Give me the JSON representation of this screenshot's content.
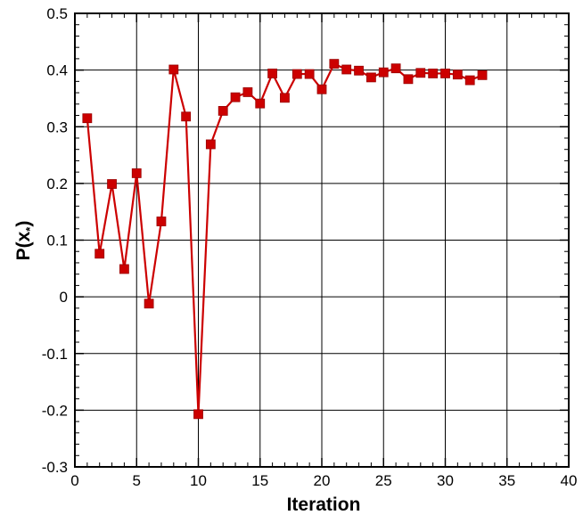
{
  "chart_data": {
    "type": "line",
    "xlabel": "Iteration",
    "ylabel_main": "P(x",
    "ylabel_sub": "*",
    "ylabel_close": ")",
    "xlim": [
      0,
      40
    ],
    "ylim": [
      -0.3,
      0.5
    ],
    "x_major_ticks": [
      "0",
      "5",
      "10",
      "15",
      "20",
      "25",
      "30",
      "35",
      "40"
    ],
    "y_major_ticks": [
      "-0.3",
      "-0.2",
      "-0.1",
      "0",
      "0.1",
      "0.2",
      "0.3",
      "0.4",
      "0.5"
    ],
    "grid": true,
    "series_color": "#cc0000",
    "marker": "square",
    "x": [
      1,
      2,
      3,
      4,
      5,
      6,
      7,
      8,
      9,
      10,
      11,
      12,
      13,
      14,
      15,
      16,
      17,
      18,
      19,
      20,
      21,
      22,
      23,
      24,
      25,
      26,
      27,
      28,
      29,
      30,
      31,
      32,
      33
    ],
    "y": [
      0.315,
      0.076,
      0.199,
      0.049,
      0.218,
      -0.012,
      0.133,
      0.401,
      0.318,
      -0.207,
      0.269,
      0.328,
      0.352,
      0.361,
      0.341,
      0.394,
      0.351,
      0.393,
      0.393,
      0.366,
      0.411,
      0.401,
      0.399,
      0.387,
      0.396,
      0.403,
      0.384,
      0.395,
      0.394,
      0.394,
      0.392,
      0.382,
      0.391
    ]
  }
}
